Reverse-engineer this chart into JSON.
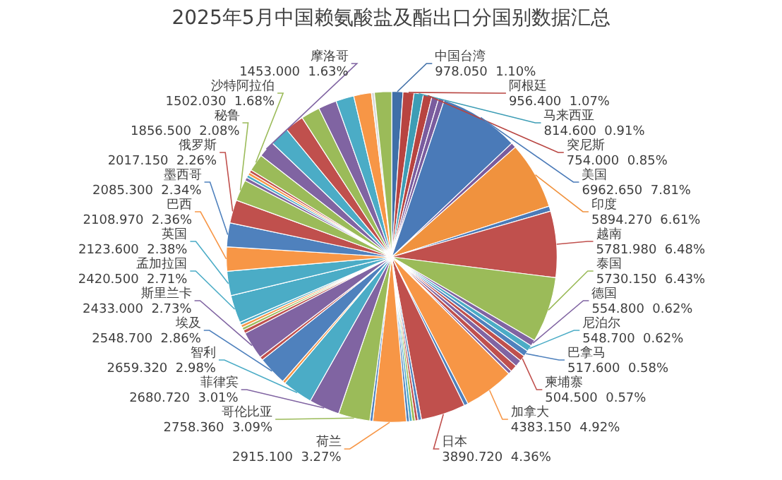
{
  "chart_data": {
    "type": "pie",
    "title": "2025年5月中国赖氨酸盐及酯出口分国别数据汇总",
    "legend": false,
    "categories": [
      "中国台湾",
      "阿根廷",
      "马来西亚",
      "突尼斯",
      null,
      null,
      "美国",
      null,
      "印度",
      null,
      "越南",
      "泰国",
      "德国",
      "尼泊尔",
      "巴拿马",
      "柬埔寨",
      null,
      null,
      null,
      "加拿大",
      null,
      "日本",
      null,
      null,
      null,
      null,
      null,
      "荷兰",
      null,
      "哥伦比亚",
      "菲律宾",
      "智利",
      null,
      "埃及",
      null,
      "斯里兰卡",
      null,
      null,
      null,
      null,
      "孟加拉国",
      "英国",
      "巴西",
      "墨西哥",
      "俄罗斯",
      "秘鲁",
      null,
      null,
      null,
      null,
      "沙特阿拉伯",
      "摩洛哥",
      null,
      null,
      null,
      null,
      null,
      null,
      null,
      null
    ],
    "values": [
      978.05,
      956.4,
      814.6,
      754,
      600,
      500,
      6962.65,
      450,
      5894.27,
      450,
      5781.98,
      5730.15,
      554.8,
      548.7,
      517.6,
      504.5,
      600,
      600,
      300,
      4383.15,
      350,
      3890.72,
      300,
      250,
      250,
      250,
      250,
      2915.1,
      250,
      2758.36,
      2680.72,
      2659.32,
      250,
      2548.7,
      300,
      2433,
      300,
      250,
      250,
      250,
      2420.5,
      2123.6,
      2108.97,
      2085.3,
      2017.15,
      1856.5,
      300,
      250,
      250,
      250,
      1502.03,
      1453,
      1700,
      1680,
      1650,
      1600,
      1580,
      1550,
      250,
      1500
    ],
    "value_labels": [
      "978.050  1.10%",
      "956.400  1.07%",
      "814.600  0.91%",
      "754.000  0.85%",
      null,
      null,
      "6962.650  7.81%",
      null,
      "5894.270  6.61%",
      null,
      "5781.980  6.48%",
      "5730.150  6.43%",
      "554.800  0.62%",
      "548.700  0.62%",
      "517.600  0.58%",
      "504.500  0.57%",
      null,
      null,
      null,
      "4383.150  4.92%",
      null,
      "3890.720  4.36%",
      null,
      null,
      null,
      null,
      null,
      "2915.100  3.27%",
      null,
      "2758.360  3.09%",
      "2680.720  3.01%",
      "2659.320  2.98%",
      null,
      "2548.700  2.86%",
      null,
      "2433.000  2.73%",
      null,
      null,
      null,
      null,
      "2420.500  2.71%",
      "2123.600  2.38%",
      "2108.970  2.36%",
      "2085.300  2.34%",
      "2017.150  2.26%",
      "1856.500  2.08%",
      null,
      null,
      null,
      null,
      "1502.030  1.68%",
      "1453.000  1.63%",
      null,
      null,
      null,
      null,
      null,
      null,
      null,
      null
    ],
    "colors": [
      "#3f6fa8",
      "#b84440",
      "#3d9db5",
      "#b84440",
      "#7a5c9e",
      "#7a5c9e",
      "#4a7ab8",
      "#7a5c9e",
      "#f0923e",
      "#4a7ab8",
      "#c0504d",
      "#9bbb59",
      "#8064a2",
      "#4bacc6",
      "#4f81bd",
      "#c0504d",
      "#8064a2",
      "#c0504d",
      "#8064a2",
      "#f79646",
      "#4f81bd",
      "#c0504d",
      "#4f81bd",
      "#c0504d",
      "#9bbb59",
      "#4bacc6",
      "#4f81bd",
      "#f79646",
      "#4f81bd",
      "#9bbb59",
      "#8064a2",
      "#4bacc6",
      "#f79646",
      "#4f81bd",
      "#c0504d",
      "#8064a2",
      "#c0504d",
      "#9bbb59",
      "#f79646",
      "#4bacc6",
      "#4bacc6",
      "#4bacc6",
      "#f79646",
      "#4f81bd",
      "#c0504d",
      "#9bbb59",
      "#8064a2",
      "#4bacc6",
      "#f79646",
      "#c0504d",
      "#9bbb59",
      "#8064a2",
      "#4bacc6",
      "#c0504d",
      "#9bbb59",
      "#8064a2",
      "#4bacc6",
      "#f79646",
      "#d9d9d9",
      "#9bbb59"
    ]
  }
}
